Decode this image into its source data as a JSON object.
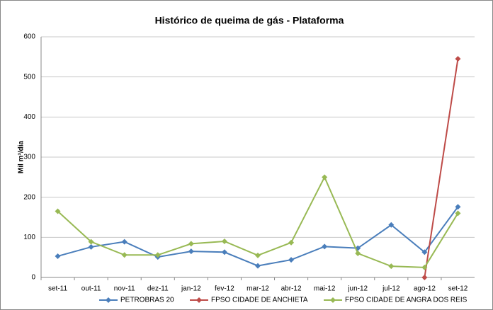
{
  "chart_data": {
    "type": "line",
    "title": "Histórico de queima de gás - Plataforma",
    "y_label": "Mil m³/dia",
    "categories": [
      "set-11",
      "out-11",
      "nov-11",
      "dez-11",
      "jan-12",
      "fev-12",
      "mar-12",
      "abr-12",
      "mai-12",
      "jun-12",
      "jul-12",
      "ago-12",
      "set-12"
    ],
    "series": [
      {
        "name": "PETROBRAS 20",
        "color": "#4a7ebb",
        "values": [
          53,
          76,
          89,
          51,
          65,
          63,
          29,
          44,
          77,
          73,
          131,
          63,
          176
        ]
      },
      {
        "name": "FPSO CIDADE DE ANCHIETA",
        "color": "#be4b48",
        "values": [
          null,
          null,
          null,
          null,
          null,
          null,
          null,
          null,
          null,
          null,
          null,
          0,
          545
        ]
      },
      {
        "name": "FPSO CIDADE DE ANGRA DOS REIS",
        "color": "#98b954",
        "values": [
          165,
          89,
          56,
          56,
          84,
          90,
          55,
          87,
          250,
          60,
          28,
          25,
          160
        ]
      }
    ],
    "ylim": [
      0,
      600
    ],
    "yticks": [
      0,
      100,
      200,
      300,
      400,
      500,
      600
    ],
    "grid": true,
    "legend": "bottom"
  }
}
